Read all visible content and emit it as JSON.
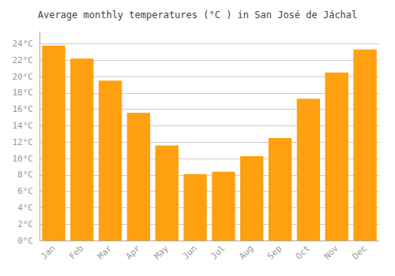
{
  "chart_data": {
    "type": "bar",
    "title": "Average monthly temperatures (°C ) in San José de Jáchal",
    "categories": [
      "Jan",
      "Feb",
      "Mar",
      "Apr",
      "May",
      "Jun",
      "Jul",
      "Aug",
      "Sep",
      "Oct",
      "Nov",
      "Dec"
    ],
    "values": [
      23.8,
      22.2,
      19.5,
      15.6,
      11.6,
      8.1,
      8.4,
      10.3,
      12.5,
      17.3,
      20.5,
      23.3
    ],
    "color": "#FFA010",
    "ylim": [
      0,
      25.5
    ],
    "yticks": [
      {
        "value": 0,
        "label": "0°C"
      },
      {
        "value": 2,
        "label": "2°C"
      },
      {
        "value": 4,
        "label": "4°C"
      },
      {
        "value": 6,
        "label": "6°C"
      },
      {
        "value": 8,
        "label": "8°C"
      },
      {
        "value": 10,
        "label": "10°C"
      },
      {
        "value": 12,
        "label": "12°C"
      },
      {
        "value": 14,
        "label": "14°C"
      },
      {
        "value": 16,
        "label": "16°C"
      },
      {
        "value": 18,
        "label": "18°C"
      },
      {
        "value": 20,
        "label": "20°C"
      },
      {
        "value": 22,
        "label": "22°C"
      },
      {
        "value": 24,
        "label": "24°C"
      }
    ],
    "grid": true
  }
}
